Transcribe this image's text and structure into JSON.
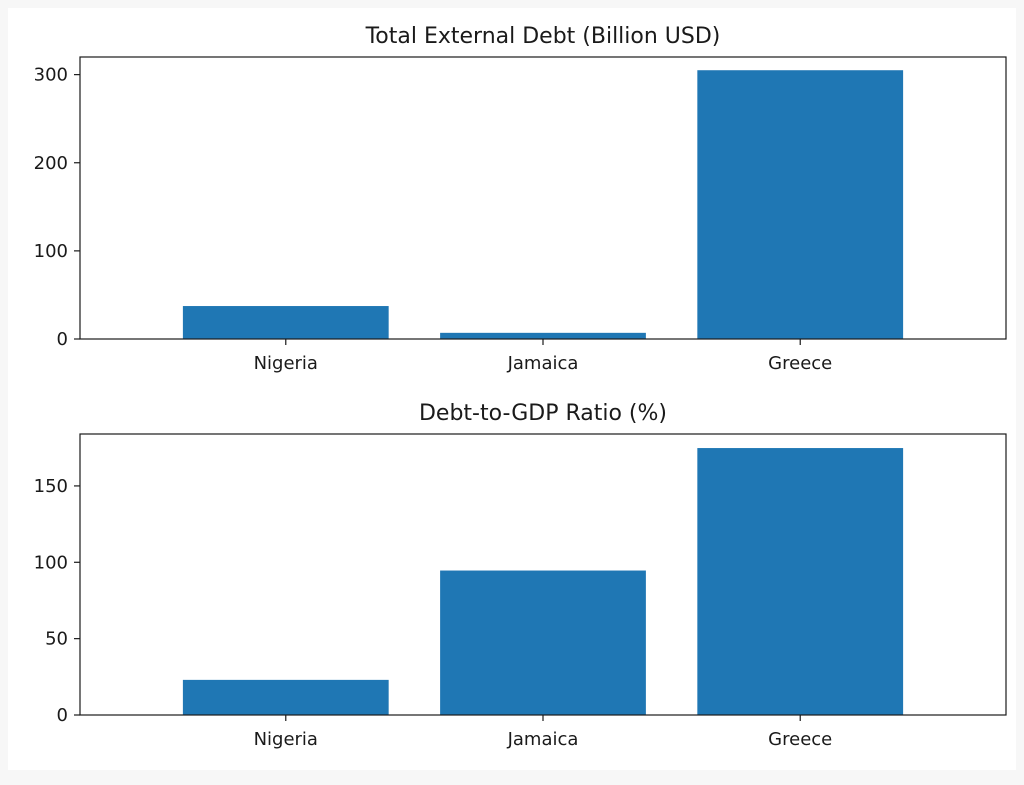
{
  "figure": {
    "background": "#f7f7f7",
    "panel_background": "#ffffff",
    "bar_color": "#1f77b4"
  },
  "chart_data": [
    {
      "type": "bar",
      "title": "Total External Debt (Billion USD)",
      "categories": [
        "Nigeria",
        "Jamaica",
        "Greece"
      ],
      "values": [
        37.4,
        7.0,
        305.0
      ],
      "xlabel": "",
      "ylabel": "",
      "ylim": [
        0,
        320
      ],
      "yticks": [
        0,
        100,
        200,
        300
      ],
      "grid": false,
      "legend": "none"
    },
    {
      "type": "bar",
      "title": "Debt-to-GDP Ratio (%)",
      "categories": [
        "Nigeria",
        "Jamaica",
        "Greece"
      ],
      "values": [
        23.0,
        94.6,
        174.8
      ],
      "xlabel": "",
      "ylabel": "",
      "ylim": [
        0,
        184
      ],
      "yticks": [
        0,
        50,
        100,
        150
      ],
      "grid": false,
      "legend": "none"
    }
  ]
}
